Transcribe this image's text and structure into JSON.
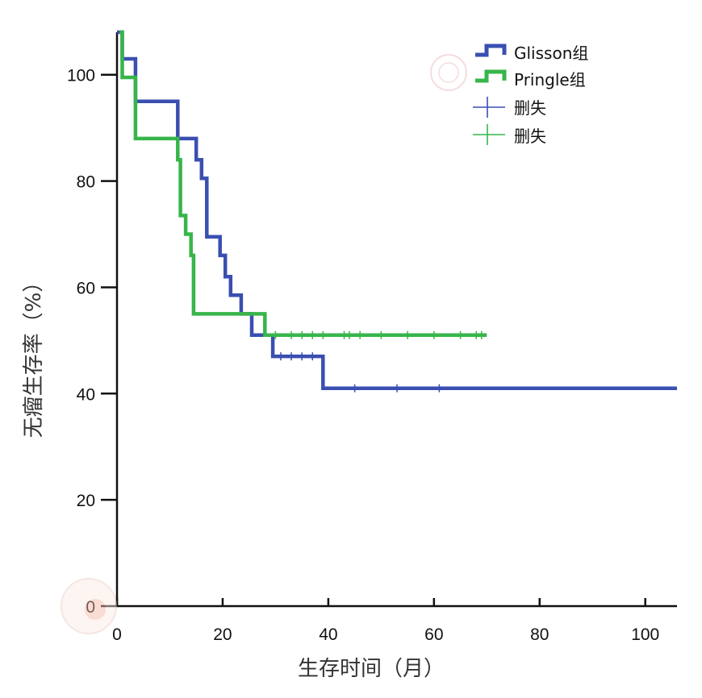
{
  "chart_data": {
    "type": "line",
    "subtype": "kaplan-meier step",
    "xlabel": "生存时间（月）",
    "ylabel": "无瘤生存率（%）",
    "xlim": [
      0,
      106
    ],
    "ylim": [
      0,
      108
    ],
    "x_ticks": [
      0,
      20,
      40,
      60,
      80,
      100
    ],
    "y_ticks": [
      0,
      20,
      40,
      60,
      80,
      100
    ],
    "grid": false,
    "legend_position": "top-right",
    "series": [
      {
        "name": "Glisson组",
        "color": "#3a4fb0",
        "points": [
          [
            0,
            108
          ],
          [
            1,
            108
          ],
          [
            1,
            103
          ],
          [
            3.5,
            103
          ],
          [
            3.5,
            95
          ],
          [
            11.5,
            95
          ],
          [
            11.5,
            88
          ],
          [
            15,
            88
          ],
          [
            15,
            84
          ],
          [
            16,
            84
          ],
          [
            16,
            80.5
          ],
          [
            17,
            80.5
          ],
          [
            17,
            69.5
          ],
          [
            19.5,
            69.5
          ],
          [
            19.5,
            66
          ],
          [
            20.5,
            66
          ],
          [
            20.5,
            62
          ],
          [
            21.5,
            62
          ],
          [
            21.5,
            58.5
          ],
          [
            23.5,
            58.5
          ],
          [
            23.5,
            55
          ],
          [
            25.5,
            55
          ],
          [
            25.5,
            51
          ],
          [
            29.5,
            51
          ],
          [
            29.5,
            47
          ],
          [
            39,
            47
          ],
          [
            39,
            41
          ],
          [
            106,
            41
          ]
        ],
        "censor_x": [
          31,
          33,
          35,
          37,
          45,
          53,
          61
        ]
      },
      {
        "name": "Pringle组",
        "color": "#37b54a",
        "points": [
          [
            0.5,
            108
          ],
          [
            1,
            108
          ],
          [
            1,
            99.5
          ],
          [
            3.5,
            99.5
          ],
          [
            3.5,
            88
          ],
          [
            11.5,
            88
          ],
          [
            11.5,
            84
          ],
          [
            12,
            84
          ],
          [
            12,
            73.5
          ],
          [
            13,
            73.5
          ],
          [
            13,
            70
          ],
          [
            14,
            70
          ],
          [
            14,
            66
          ],
          [
            14.5,
            66
          ],
          [
            14.5,
            55
          ],
          [
            28,
            55
          ],
          [
            28,
            51
          ],
          [
            70,
            51
          ]
        ],
        "censor_x": [
          30,
          33,
          35,
          37,
          39,
          43,
          44,
          46,
          50,
          55,
          60,
          65,
          68,
          69
        ]
      }
    ],
    "legend": [
      {
        "label": "Glisson组",
        "marker": "step-line",
        "color": "#3a4fb0"
      },
      {
        "label": "Pringle组",
        "marker": "step-line",
        "color": "#37b54a"
      },
      {
        "label": "删失",
        "marker": "plus",
        "color": "#3a4fb0"
      },
      {
        "label": "删失",
        "marker": "plus",
        "color": "#37b54a"
      }
    ]
  }
}
